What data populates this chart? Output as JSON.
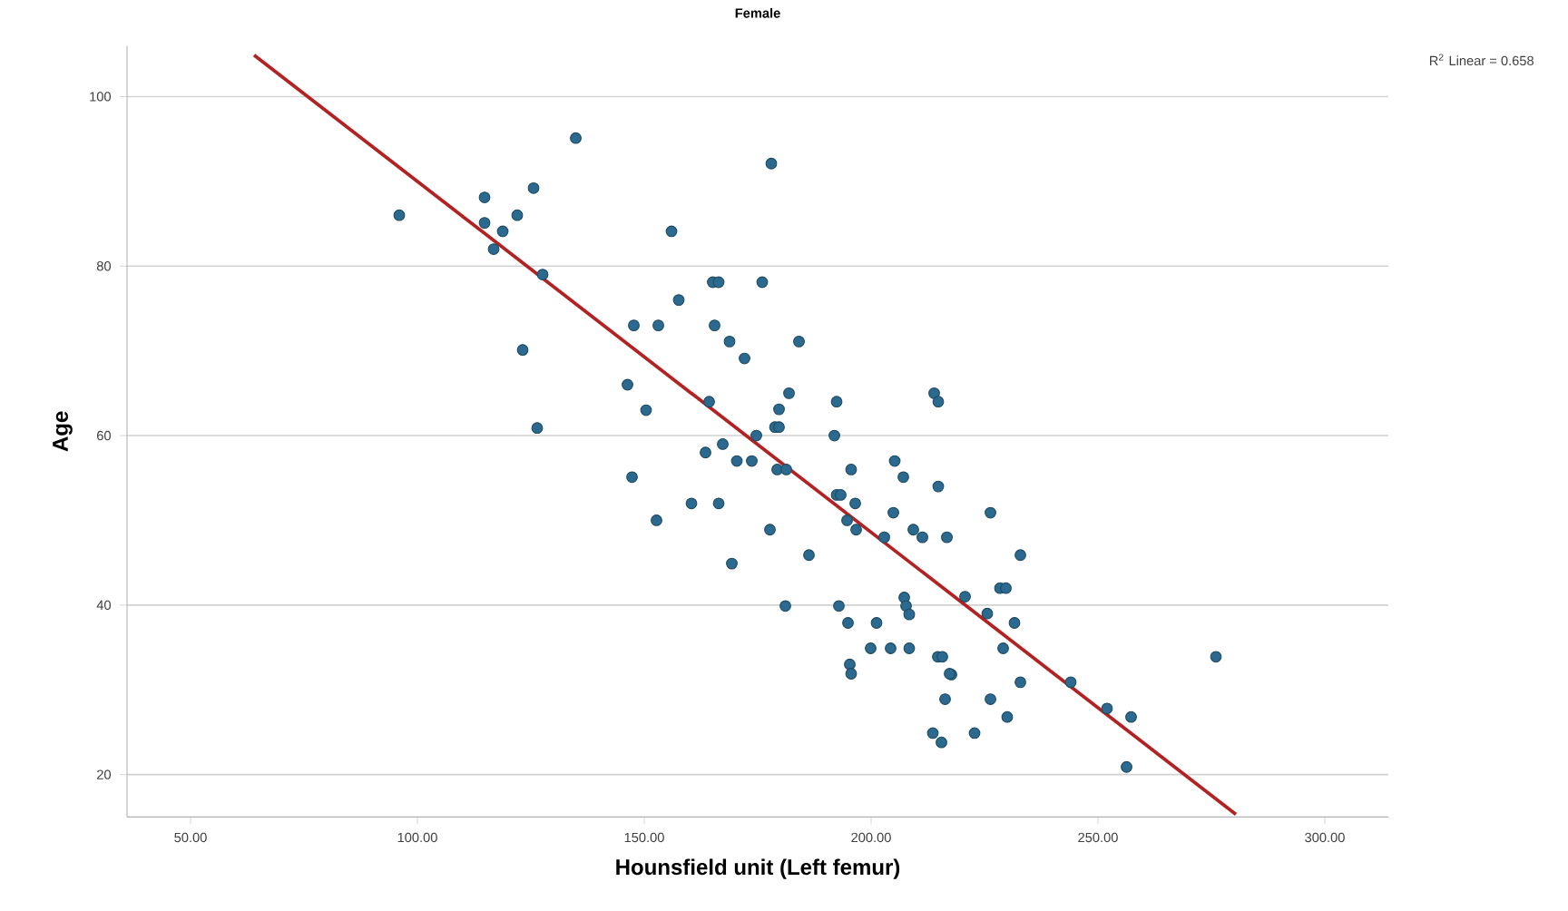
{
  "chart_data": {
    "type": "scatter",
    "title": "Female",
    "xlabel": "Hounsfield unit (Left femur)",
    "ylabel": "Age",
    "annotations": [
      "R$^{2}$ Linear = 0.658"
    ],
    "xlim": [
      36,
      314
    ],
    "ylim": [
      15,
      106
    ],
    "xticks": [
      {
        "value": 50,
        "label": "50.00"
      },
      {
        "value": 100,
        "label": "100.00"
      },
      {
        "value": 150,
        "label": "150.00"
      },
      {
        "value": 200,
        "label": "200.00"
      },
      {
        "value": 250,
        "label": "250.00"
      },
      {
        "value": 300,
        "label": "300.00"
      }
    ],
    "yticks": [
      20,
      40,
      60,
      80,
      100
    ],
    "grid": "y",
    "series": [
      {
        "color": "#2b6a8e",
        "marker": "circle",
        "x": [
          96,
          114.8,
          125.6,
          114.8,
          122,
          118.8,
          116.8,
          127.6,
          123.2,
          126.4,
          134.9,
          178,
          156,
          165.1,
          166.4,
          176,
          157.6,
          147.7,
          153.1,
          165.5,
          168.8,
          184.1,
          172.1,
          146.3,
          150.4,
          164.3,
          181.9,
          179.7,
          192.4,
          213.9,
          214.8,
          178.8,
          179.7,
          174.7,
          191.9,
          163.5,
          167.3,
          170.4,
          173.7,
          205.2,
          147.3,
          179.3,
          181.3,
          195.6,
          207.1,
          214.8,
          192.4,
          193.3,
          196.5,
          160.4,
          166.4,
          204.9,
          194.7,
          196.7,
          152.7,
          209.3,
          211.3,
          216.7,
          202.9,
          177.7,
          186.3,
          169.3,
          181.1,
          192.9,
          194.9,
          201.2,
          207.3,
          207.7,
          208.4,
          199.9,
          204.3,
          208.4,
          195.3,
          195.6,
          214.7,
          215.7,
          217.7,
          216.3,
          226.3,
          213.6,
          215.5,
          222.8,
          226.3,
          232.9,
          220.7,
          228.4,
          229.7,
          225.6,
          231.6,
          229.1,
          217.3,
          232.9,
          230,
          244,
          252,
          257.3,
          256.3,
          276
        ],
        "values": [
          86,
          88.1,
          89.2,
          85.1,
          86,
          84.1,
          82,
          79,
          70.1,
          60.9,
          95.1,
          92.1,
          84.1,
          78.1,
          78.1,
          78.1,
          76,
          73,
          73,
          73,
          71.1,
          71.1,
          69.1,
          66,
          63,
          64,
          65,
          63.1,
          64,
          65,
          64,
          61,
          61,
          60,
          60,
          58,
          59,
          57,
          57,
          57,
          55.1,
          56,
          56,
          56,
          55.1,
          54,
          53,
          53,
          52,
          52,
          52,
          50.9,
          50,
          48.9,
          50,
          48.9,
          48,
          48,
          48,
          48.9,
          45.9,
          44.9,
          39.9,
          39.9,
          37.9,
          37.9,
          40.9,
          39.9,
          38.9,
          34.9,
          34.9,
          34.9,
          33,
          31.9,
          33.9,
          33.9,
          31.8,
          28.9,
          28.9,
          24.9,
          23.8,
          24.9,
          50.9,
          45.9,
          41,
          42,
          42,
          39,
          37.9,
          34.9,
          31.9,
          30.9,
          26.8,
          30.9,
          27.8,
          26.8,
          20.9,
          33.9
        ]
      },
      {
        "type": "line",
        "color": "#b22222",
        "marker": "none",
        "x": [
          64,
          280.4
        ],
        "values": [
          104.9,
          15.3
        ]
      }
    ]
  }
}
